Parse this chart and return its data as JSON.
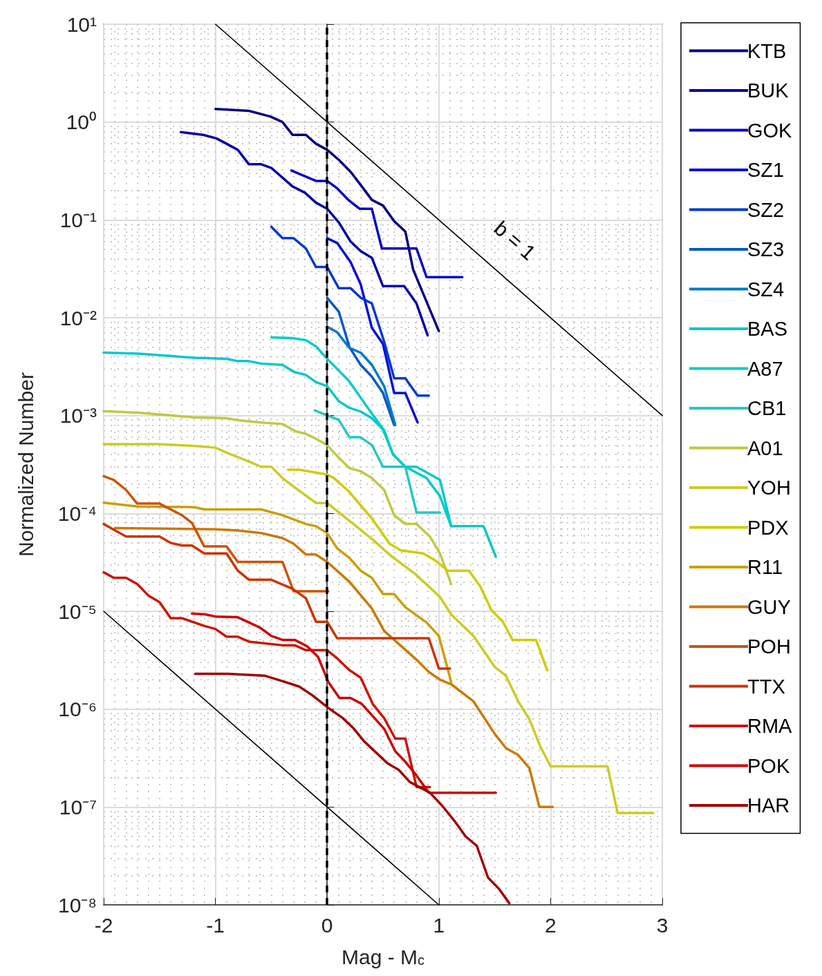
{
  "chart_data": {
    "type": "line",
    "xlabel": "Mag - M$_{c}$",
    "ylabel": "Normalized Number",
    "log": "y",
    "grid": true,
    "legend": "right",
    "marker": "none",
    "line_style": "solid",
    "xlim": [
      -2,
      3
    ],
    "xticks": [
      -2,
      -1,
      0,
      1,
      2,
      3
    ],
    "ylim": [
      1e-08,
      10
    ],
    "yticks": [
      {
        "value": 1e-08,
        "label": "10⁻⁸"
      },
      {
        "value": 1e-07,
        "label": "10⁻⁷"
      },
      {
        "value": 1e-06,
        "label": "10⁻⁶"
      },
      {
        "value": 1e-05,
        "label": "10⁻⁵"
      },
      {
        "value": 0.0001,
        "label": "10⁻⁴"
      },
      {
        "value": 0.001,
        "label": "10⁻³"
      },
      {
        "value": 0.01,
        "label": "10⁻²"
      },
      {
        "value": 0.1,
        "label": "10⁻¹"
      },
      {
        "value": 1,
        "label": "10⁰"
      },
      {
        "value": 10,
        "label": "10¹"
      }
    ],
    "ref_lines": [
      {
        "axis": "x",
        "value": 0,
        "label": null,
        "color": "#000000",
        "line_style": "dashed"
      }
    ],
    "annotations": [
      "b = 1"
    ],
    "series": [
      {
        "name": "KTB",
        "color": "#000080",
        "x": [
          -1.0,
          -0.7,
          -0.51,
          -0.4,
          -0.31,
          -0.19,
          -0.1,
          0,
          0.105,
          0.21,
          0.31,
          0.4,
          0.5,
          0.6,
          0.7,
          0.77,
          1.0
        ],
        "values": [
          1.36,
          1.3,
          1.14,
          1.0,
          0.74,
          0.74,
          0.6,
          0.52,
          0.41,
          0.31,
          0.22,
          0.16,
          0.14,
          0.097,
          0.076,
          0.031,
          0.0073
        ]
      },
      {
        "name": "BUK",
        "color": "#0000a8",
        "x": [
          -1.31,
          -1.11,
          -0.99,
          -0.8,
          -0.7,
          -0.59,
          -0.5,
          -0.31,
          -0.2,
          -0.1,
          0,
          0.105,
          0.21,
          0.3,
          0.4,
          0.5,
          0.69,
          0.8,
          0.9
        ],
        "values": [
          0.79,
          0.74,
          0.68,
          0.52,
          0.37,
          0.37,
          0.34,
          0.22,
          0.19,
          0.15,
          0.13,
          0.094,
          0.06,
          0.048,
          0.041,
          0.021,
          0.021,
          0.014,
          0.0066
        ]
      },
      {
        "name": "GOK",
        "color": "#0000c8",
        "x": [
          -0.32,
          -0.1,
          0,
          0.09,
          0.19,
          0.29,
          0.4,
          0.49,
          0.8,
          0.89,
          1.21
        ],
        "values": [
          0.32,
          0.25,
          0.25,
          0.21,
          0.16,
          0.13,
          0.13,
          0.051,
          0.051,
          0.026,
          0.026
        ]
      },
      {
        "name": "SZ1",
        "color": "#0010d8",
        "x": [
          0,
          0.09,
          0.21,
          0.3,
          0.4,
          0.5,
          0.6,
          0.7,
          0.81
        ],
        "values": [
          0.065,
          0.058,
          0.037,
          0.022,
          0.0079,
          0.0054,
          0.0017,
          0.0017,
          0.00085
        ]
      },
      {
        "name": "SZ2",
        "color": "#0038d0",
        "x": [
          -0.5,
          -0.4,
          -0.3,
          -0.19,
          -0.1,
          0,
          0.105,
          0.21,
          0.3,
          0.4,
          0.51,
          0.6,
          0.7,
          0.81,
          0.91
        ],
        "values": [
          0.085,
          0.065,
          0.065,
          0.051,
          0.033,
          0.033,
          0.02,
          0.02,
          0.016,
          0.014,
          0.0057,
          0.0024,
          0.0024,
          0.0016,
          0.0016
        ]
      },
      {
        "name": "SZ3",
        "color": "#0058c8",
        "x": [
          0,
          0.105,
          0.2,
          0.3,
          0.4,
          0.5,
          0.6
        ],
        "values": [
          0.016,
          0.0115,
          0.005,
          0.0033,
          0.0025,
          0.0017,
          0.0008
        ]
      },
      {
        "name": "SZ4",
        "color": "#0078cc",
        "x": [
          0,
          0.09,
          0.2,
          0.3,
          0.4,
          0.51,
          0.61
        ],
        "values": [
          0.0081,
          0.0071,
          0.0049,
          0.0044,
          0.0033,
          0.002,
          0.0008
        ]
      },
      {
        "name": "BAS",
        "color": "#00c8cc",
        "x": [
          -2,
          -1.69,
          -1.19,
          -0.9,
          -0.8,
          -0.7,
          -0.59,
          -0.4,
          -0.3,
          -0.19,
          -0.1,
          0,
          0.105,
          0.2,
          0.3,
          0.4,
          0.5,
          0.59,
          0.7,
          0.8,
          1.01,
          1.11,
          1.4,
          1.51
        ],
        "values": [
          0.0044,
          0.0043,
          0.0039,
          0.0038,
          0.0036,
          0.0036,
          0.0034,
          0.0033,
          0.0028,
          0.0026,
          0.0022,
          0.002,
          0.0014,
          0.0012,
          0.0011,
          0.00094,
          0.00072,
          0.0004,
          0.0003,
          0.0003,
          0.00022,
          7.4e-05,
          7.4e-05,
          3.6e-05
        ]
      },
      {
        "name": "A87",
        "color": "#00cccc",
        "x": [
          -0.5,
          -0.31,
          -0.19,
          -0.1,
          0,
          0.19,
          0.4,
          0.51,
          0.59,
          0.7,
          0.89,
          1.01,
          1.11
        ],
        "values": [
          0.0063,
          0.0062,
          0.0059,
          0.0051,
          0.0038,
          0.0023,
          0.00105,
          0.00071,
          0.0004,
          0.0003,
          0.00023,
          0.00015,
          7.4e-05
        ]
      },
      {
        "name": "CB1",
        "color": "#22c8c8",
        "x": [
          -0.11,
          0.105,
          0.2,
          0.3,
          0.4,
          0.5,
          0.7,
          0.8,
          1.01
        ],
        "values": [
          0.00113,
          0.0009,
          0.0006,
          0.0006,
          0.0005,
          0.0003,
          0.0003,
          0.000102,
          0.000102
        ]
      },
      {
        "name": "A01",
        "color": "#c0c840",
        "x": [
          -2,
          -1.69,
          -1.19,
          -0.9,
          -0.8,
          -0.59,
          -0.4,
          -0.28,
          -0.19,
          -0.1,
          0,
          0.105,
          0.2,
          0.3,
          0.4,
          0.51,
          0.6,
          0.7,
          0.8,
          0.92,
          1.01,
          1.11
        ],
        "values": [
          0.00111,
          0.00107,
          0.00096,
          0.00094,
          0.0009,
          0.00085,
          0.00082,
          0.00069,
          0.00065,
          0.00058,
          0.0005,
          0.00037,
          0.00029,
          0.00027,
          0.00023,
          0.000174,
          9.6e-05,
          7.8e-05,
          7.8e-05,
          5.8e-05,
          3.9e-05,
          1.9e-05
        ]
      },
      {
        "name": "YOH",
        "color": "#cccc20",
        "x": [
          -2,
          -1.5,
          -1.19,
          -1.0,
          -0.88,
          -0.7,
          -0.59,
          -0.5,
          -0.4,
          -0.3,
          -0.1,
          0,
          0.2,
          0.4,
          0.57,
          0.79,
          1.01,
          1.11,
          1.31,
          1.5,
          1.6,
          1.71,
          1.81,
          1.91,
          2.0,
          2.51,
          2.6,
          2.92
        ],
        "values": [
          0.00051,
          0.00051,
          0.00049,
          0.00047,
          0.00041,
          0.00034,
          0.0003,
          0.0003,
          0.00023,
          0.000188,
          0.000128,
          0.000128,
          8.4e-05,
          5.5e-05,
          3.7e-05,
          2.4e-05,
          1.4e-05,
          9.3e-06,
          5.6e-06,
          2.7e-06,
          2.2e-06,
          1.2e-06,
          7.9e-07,
          4.1e-07,
          2.6e-07,
          2.6e-07,
          8.7e-08,
          8.7e-08
        ]
      },
      {
        "name": "PDX",
        "color": "#d0cc00",
        "x": [
          -0.35,
          -0.25,
          0,
          0.06,
          0.19,
          0.4,
          0.56,
          0.66,
          0.86,
          0.97,
          1.08,
          1.27,
          1.37,
          1.47,
          1.57,
          1.66,
          1.87,
          1.97
        ],
        "values": [
          0.00028,
          0.00028,
          0.00025,
          0.00023,
          0.00017,
          8.9e-05,
          4.9e-05,
          4.2e-05,
          3.9e-05,
          3.3e-05,
          2.6e-05,
          2.6e-05,
          1.8e-05,
          1.03e-05,
          7.9e-06,
          5.1e-06,
          5.1e-06,
          2.5e-06
        ]
      },
      {
        "name": "R11",
        "color": "#cc9e00",
        "x": [
          -2,
          -1.7,
          -1.19,
          -1.1,
          -0.59,
          -0.4,
          -0.19,
          -0.1,
          0,
          0.09,
          0.2,
          0.3,
          0.4,
          0.5,
          0.6,
          0.7,
          0.89,
          1.0,
          1.11
        ],
        "values": [
          0.000129,
          0.000118,
          0.000116,
          0.00011,
          0.00011,
          9.6e-05,
          7.8e-05,
          7.4e-05,
          6.3e-05,
          4.4e-05,
          3.5e-05,
          2.6e-05,
          2.2e-05,
          1.5e-05,
          1.5e-05,
          1.1e-05,
          7.7e-06,
          5.6e-06,
          1.9e-06
        ]
      },
      {
        "name": "GUY",
        "color": "#cc7800",
        "x": [
          -1.9,
          -1.0,
          -0.8,
          -0.59,
          -0.4,
          -0.3,
          -0.19,
          -0.1,
          0,
          0.2,
          0.4,
          0.51,
          0.8,
          0.91,
          1.01,
          1.11,
          1.31,
          1.5,
          1.6,
          1.71,
          1.81,
          1.9,
          2.02
        ],
        "values": [
          7.1e-05,
          6.9e-05,
          6.7e-05,
          6.3e-05,
          5.6e-05,
          4.9e-05,
          3.8e-05,
          3.8e-05,
          3.2e-05,
          2e-05,
          1.07e-05,
          6.3e-06,
          3.2e-06,
          2.4e-06,
          2e-06,
          1.8e-06,
          1.2e-06,
          5.6e-07,
          4e-07,
          3.4e-07,
          2.5e-07,
          1e-07,
          1e-07
        ]
      },
      {
        "name": "POH",
        "color": "#cc5200",
        "x": [
          -2,
          -1.91,
          -1.8,
          -1.7,
          -1.5,
          -1.4,
          -1.3,
          -1.21,
          -1.1,
          -0.9,
          -0.8,
          -0.4,
          -0.3,
          0.01
        ],
        "values": [
          0.00024,
          0.00022,
          0.000174,
          0.000126,
          0.000126,
          0.00011,
          9.6e-05,
          8e-05,
          4.6e-05,
          4.6e-05,
          3.2e-05,
          3.2e-05,
          1.6e-05,
          1.6e-05
        ]
      },
      {
        "name": "TTX",
        "color": "#cc3300",
        "x": [
          -2,
          -1.8,
          -1.5,
          -1.4,
          -1.3,
          -1.21,
          -1.1,
          -0.9,
          -0.8,
          -0.7,
          -0.5,
          -0.31,
          -0.19,
          -0.1,
          0,
          0.09,
          0.91,
          1.0,
          1.1
        ],
        "values": [
          7.8e-05,
          5.8e-05,
          5.8e-05,
          5e-05,
          4.7e-05,
          4.7e-05,
          3.9e-05,
          3.9e-05,
          2.6e-05,
          2.1e-05,
          2.1e-05,
          1.7e-05,
          1.36e-05,
          7.8e-06,
          7.8e-06,
          5.3e-06,
          5.3e-06,
          2.6e-06,
          2.6e-06
        ]
      },
      {
        "name": "RMA",
        "color": "#cc1400",
        "x": [
          -2,
          -1.91,
          -1.8,
          -1.7,
          -1.6,
          -1.5,
          -1.4,
          -1.3,
          -1.1,
          -1.0,
          -0.9,
          -0.8,
          -0.7,
          -0.4,
          -0.29,
          -0.19,
          0,
          0.09,
          0.2,
          0.3,
          0.41,
          0.51,
          0.61,
          0.7,
          0.8,
          0.92
        ],
        "values": [
          2.5e-05,
          2.2e-05,
          2.2e-05,
          1.9e-05,
          1.45e-05,
          1.24e-05,
          8.5e-06,
          8.5e-06,
          7.1e-06,
          6.6e-06,
          5.5e-06,
          5.5e-06,
          4.9e-06,
          4.5e-06,
          4.5e-06,
          4e-06,
          4e-06,
          3.3e-06,
          2.5e-06,
          2.1e-06,
          1.12e-06,
          8.1e-07,
          5e-07,
          5e-07,
          1.6e-07,
          1.6e-07
        ]
      },
      {
        "name": "POK",
        "color": "#cc0000",
        "x": [
          -1.21,
          -1.09,
          -0.99,
          -0.8,
          -0.7,
          -0.6,
          -0.5,
          -0.4,
          -0.29,
          -0.18,
          -0.08,
          0.01,
          0.11,
          0.21,
          0.31,
          0.51,
          0.61,
          0.7,
          0.8,
          0.91,
          1.51
        ],
        "values": [
          9.5e-06,
          9.3e-06,
          8.8e-06,
          8.7e-06,
          7.7e-06,
          6.8e-06,
          5.6e-06,
          5.1e-06,
          5.1e-06,
          4.4e-06,
          3.4e-06,
          1.9e-06,
          1.3e-06,
          1.3e-06,
          1.13e-06,
          6.3e-07,
          3.7e-07,
          2.9e-07,
          2.1e-07,
          1.4e-07,
          1.4e-07
        ]
      },
      {
        "name": "HAR",
        "color": "#a00000",
        "x": [
          -1.18,
          -0.89,
          -0.56,
          -0.38,
          -0.25,
          -0.13,
          0.01,
          0.14,
          0.24,
          0.33,
          0.54,
          0.64,
          0.74,
          0.92,
          1.03,
          1.14,
          1.24,
          1.34,
          1.44,
          1.54,
          1.63
        ],
        "values": [
          2.3e-06,
          2.3e-06,
          2.2e-06,
          1.9e-06,
          1.7e-06,
          1.38e-06,
          1.03e-06,
          8.1e-07,
          6.3e-07,
          4.7e-07,
          2.8e-07,
          2.4e-07,
          1.8e-07,
          1.4e-07,
          1.03e-07,
          7.2e-08,
          5e-08,
          4e-08,
          1.9e-08,
          1.45e-08,
          1.04e-08
        ]
      },
      {
        "color": "#000000",
        "x": [
          -1,
          3
        ],
        "values": [
          10,
          0.001
        ]
      },
      {
        "color": "#000000",
        "x": [
          -2,
          1
        ],
        "values": [
          1e-05,
          1e-08
        ]
      }
    ]
  }
}
